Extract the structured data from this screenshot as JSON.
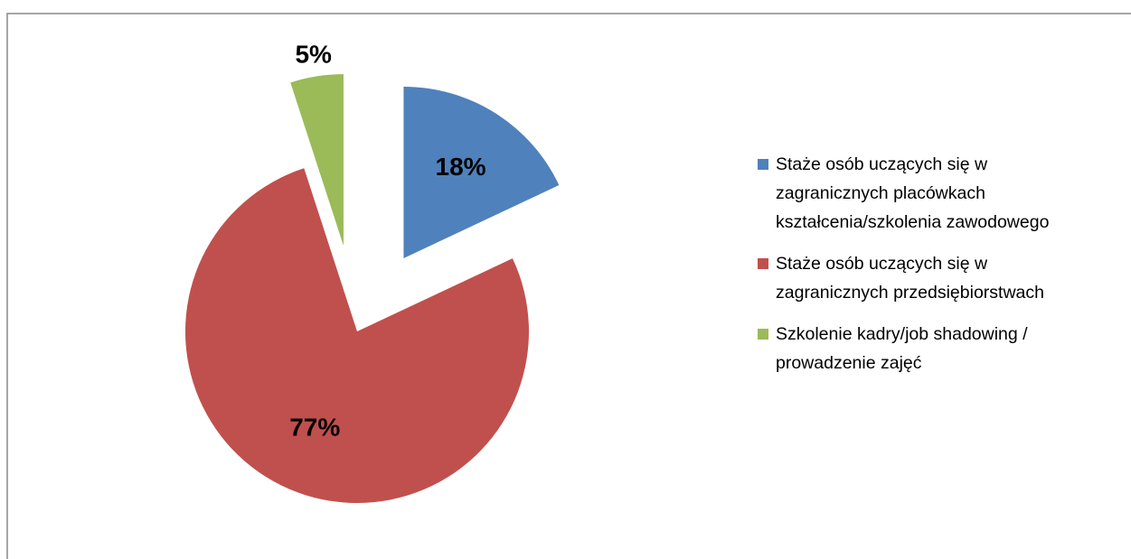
{
  "chart_data": {
    "type": "pie",
    "categories": [
      "Staże osób uczących się w zagranicznych placówkach kształcenia/szkolenia zawodowego",
      "Staże osób uczących się w zagranicznych przedsiębiorstwach",
      "Szkolenie kadry/job shadowing / prowadzenie zajęć"
    ],
    "values": [
      18,
      77,
      5
    ],
    "value_labels": [
      "18%",
      "77%",
      "5%"
    ],
    "colors": [
      "#4f81bd",
      "#c0504d",
      "#9bbb59"
    ],
    "exploded": [
      true,
      false,
      true
    ],
    "legend": "right"
  }
}
